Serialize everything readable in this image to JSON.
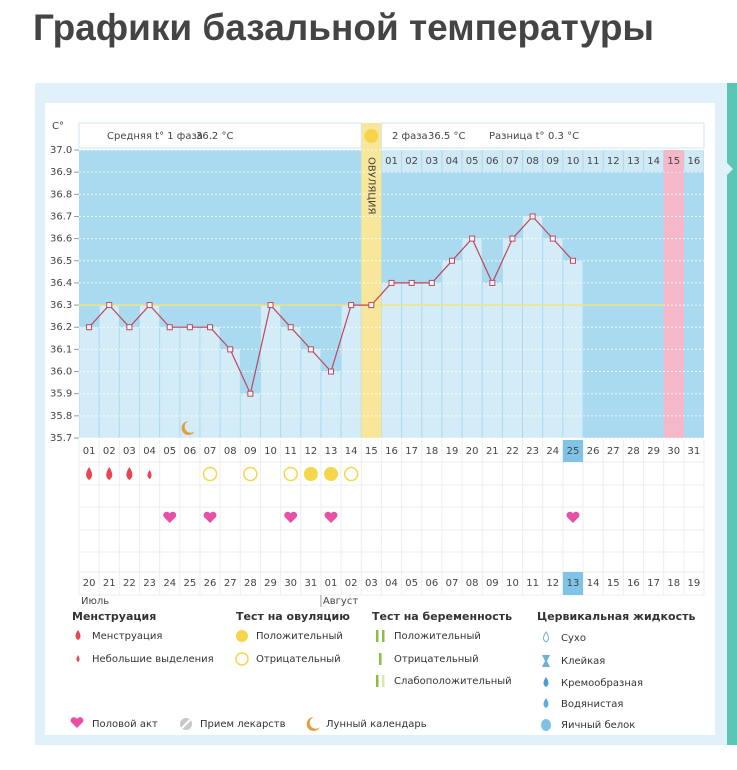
{
  "title": "Графики базальной температуры",
  "chart_data": {
    "type": "line",
    "y_label": "C°",
    "categories": [
      "01",
      "02",
      "03",
      "04",
      "05",
      "06",
      "07",
      "08",
      "09",
      "10",
      "11",
      "12",
      "13",
      "14",
      "15",
      "16",
      "17",
      "18",
      "19",
      "20",
      "21",
      "22",
      "23",
      "24",
      "25",
      "26",
      "27",
      "28",
      "29",
      "30",
      "31"
    ],
    "values": [
      36.2,
      36.3,
      36.2,
      36.3,
      36.2,
      36.2,
      36.2,
      36.1,
      35.9,
      36.3,
      36.2,
      36.1,
      36.0,
      36.3,
      36.3,
      36.4,
      36.4,
      36.4,
      36.5,
      36.6,
      36.4,
      36.6,
      36.7,
      36.6,
      36.5,
      null,
      null,
      null,
      null,
      null,
      null
    ],
    "color": "#c0455a",
    "ylim": [
      35.7,
      37.0
    ],
    "yticks": [
      {
        "value": 37.0,
        "label": "37.0"
      },
      36.9,
      36.8,
      36.7,
      36.6,
      36.5,
      36.4,
      36.3,
      36.2,
      36.1,
      {
        "value": 36.0,
        "label": "36.0"
      },
      35.9,
      35.8,
      35.7
    ],
    "grid": true,
    "coverline": 36.3,
    "phase1_label": "Средняя t° 1 фаза",
    "phase1_value": "36.2 °C",
    "ovulation_label": "ОВУЛЯЦИЯ",
    "ovulation_day": 15,
    "phase2_label": "2 фаза",
    "phase2_value": "36.5 °C",
    "difference_label": "Разница t°",
    "difference_value": "0.3 °C",
    "phase2_days": [
      "01",
      "02",
      "03",
      "04",
      "05",
      "06",
      "07",
      "08",
      "09",
      "10",
      "11",
      "12",
      "13",
      "14",
      "15",
      "16"
    ],
    "forecast_day": 30,
    "today": 25,
    "dates": [
      "20",
      "21",
      "22",
      "23",
      "24",
      "25",
      "26",
      "27",
      "28",
      "29",
      "30",
      "31",
      "01",
      "02",
      "03",
      "04",
      "05",
      "06",
      "07",
      "08",
      "09",
      "10",
      "11",
      "12",
      "13",
      "14",
      "15",
      "16",
      "17",
      "18",
      "19"
    ],
    "red_dates": [
      6,
      7,
      13,
      14,
      20,
      21,
      27,
      28
    ],
    "months": [
      {
        "label": "Июль",
        "start": 1
      },
      {
        "label": "Август",
        "start": 13
      }
    ],
    "events": {
      "menstruation": [
        1,
        2,
        3
      ],
      "spotting": [
        4
      ],
      "ovulation_positive": [
        12,
        13
      ],
      "ovulation_negative": [
        7,
        9,
        11,
        14
      ],
      "intercourse": [
        5,
        7,
        11,
        13,
        25
      ],
      "lunar": [
        6
      ]
    }
  },
  "legend": {
    "menstruation": {
      "title": "Менструация",
      "items": [
        "Менструация",
        "Небольшие выделения"
      ]
    },
    "ovulation_test": {
      "title": "Тест на овуляцию",
      "items": [
        "Положительный",
        "Отрицательный"
      ]
    },
    "pregnancy_test": {
      "title": "Тест на беременность",
      "items": [
        "Положительный",
        "Отрицательный",
        "Слабоположительный"
      ]
    },
    "cervical": {
      "title": "Цервикальная жидкость",
      "items": [
        "Сухо",
        "Клейкая",
        "Кремообразная",
        "Водянистая",
        "Яичный белок"
      ]
    },
    "other": [
      "Половой акт",
      "Прием лекарств",
      "Лунный календарь"
    ]
  }
}
